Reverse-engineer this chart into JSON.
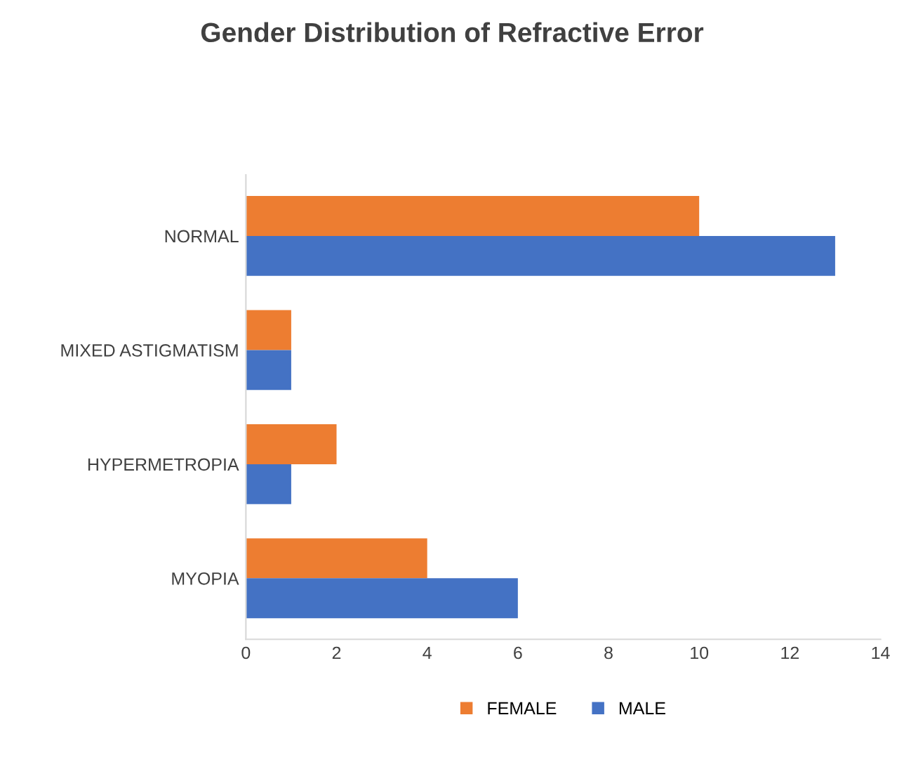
{
  "chart_data": {
    "type": "bar",
    "orientation": "horizontal",
    "title": "Gender Distribution of Refractive Error",
    "categories": [
      "NORMAL",
      "MIXED ASTIGMATISM",
      "HYPERMETROPIA",
      "MYOPIA"
    ],
    "series": [
      {
        "name": "FEMALE",
        "color": "#ed7d31",
        "values": [
          10,
          1,
          2,
          4
        ]
      },
      {
        "name": "MALE",
        "color": "#4472c4",
        "values": [
          13,
          1,
          1,
          6
        ]
      }
    ],
    "xlim": [
      0,
      14
    ],
    "xticks": [
      0,
      2,
      4,
      6,
      8,
      10,
      12,
      14
    ],
    "grid": false,
    "legend": "bottom"
  }
}
